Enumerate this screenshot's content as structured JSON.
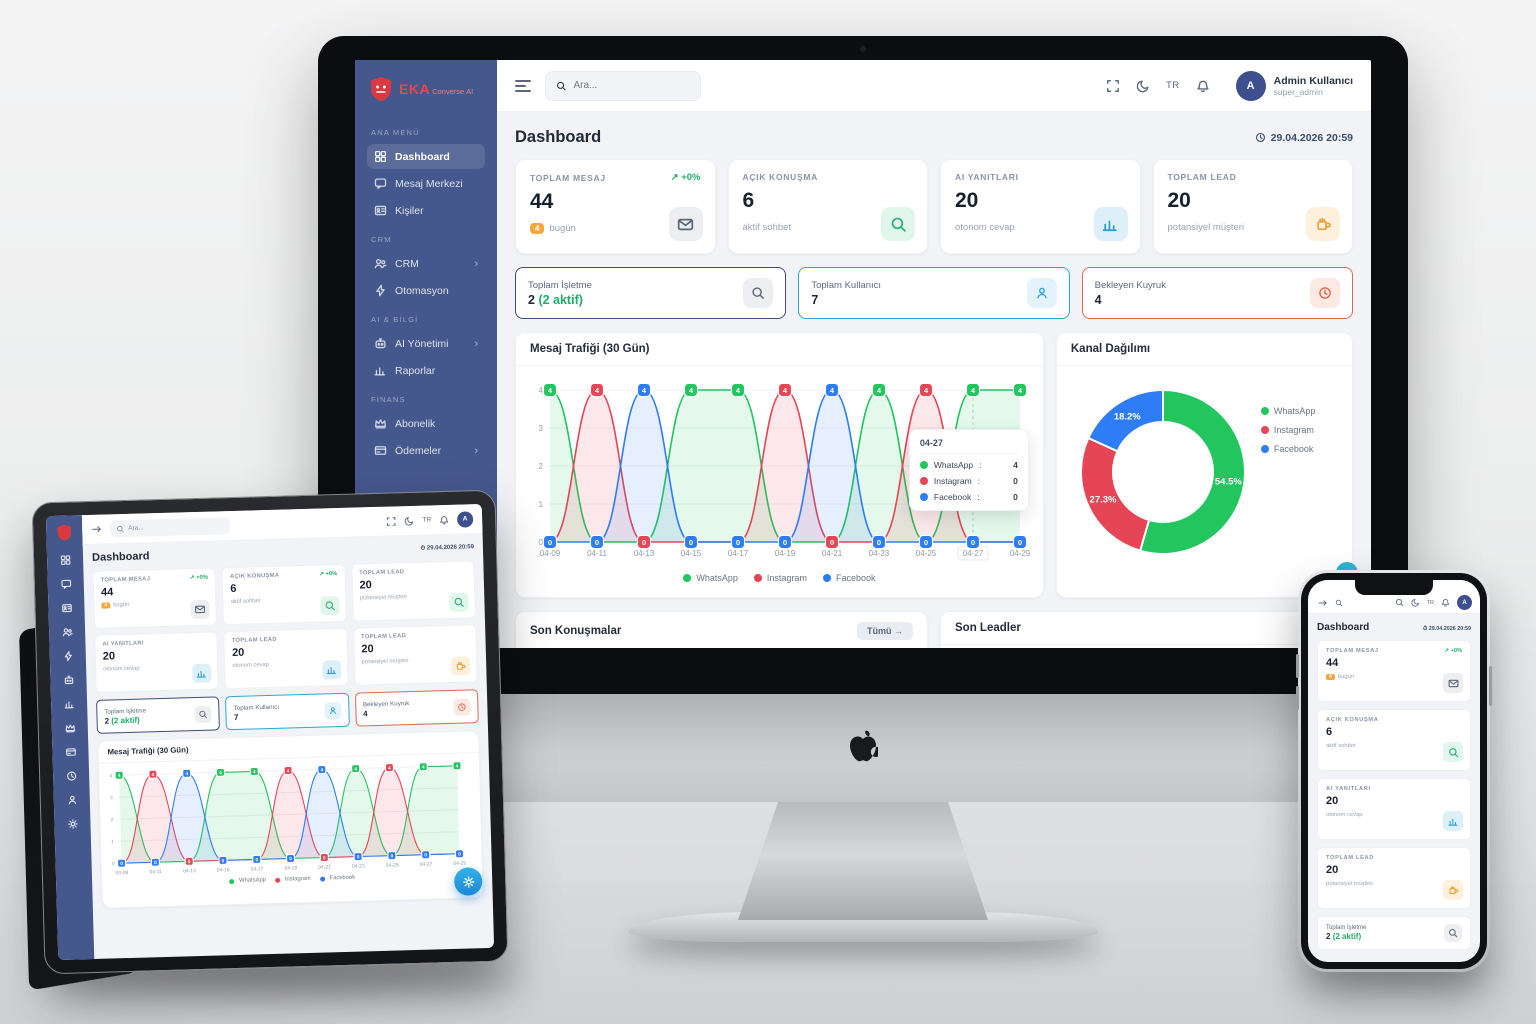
{
  "brand": {
    "name": "EKA",
    "suffix": "Converse",
    "ai": "AI"
  },
  "topbar": {
    "search_placeholder": "Ara...",
    "lang": "TR",
    "user_name": "Admin Kullanıcı",
    "user_role": "super_admin",
    "avatar_initial": "A"
  },
  "page": {
    "title": "Dashboard",
    "datetime": "29.04.2026 20:59"
  },
  "sidebar": {
    "sections": [
      {
        "title": "ANA MENÜ",
        "items": [
          {
            "label": "Dashboard",
            "icon": "dashboard-icon"
          },
          {
            "label": "Mesaj Merkezi",
            "icon": "chat-icon"
          },
          {
            "label": "Kişiler",
            "icon": "contacts-icon"
          }
        ]
      },
      {
        "title": "CRM",
        "items": [
          {
            "label": "CRM",
            "icon": "users-icon",
            "chevron": "›"
          },
          {
            "label": "Otomasyon",
            "icon": "lightning-icon"
          }
        ]
      },
      {
        "title": "AI & BİLGİ",
        "items": [
          {
            "label": "AI Yönetimi",
            "icon": "robot-icon",
            "chevron": "›"
          },
          {
            "label": "Raporlar",
            "icon": "report-icon"
          }
        ]
      },
      {
        "title": "FİNANS",
        "items": [
          {
            "label": "Abonelik",
            "icon": "crown-icon"
          },
          {
            "label": "Ödemeler",
            "icon": "card-icon",
            "chevron": "›"
          }
        ]
      }
    ]
  },
  "stats": [
    {
      "label": "TOPLAM MESAJ",
      "trend": "↗ +0%",
      "value": "44",
      "badge": "4",
      "sub": "bugün",
      "icon": "envelope-icon"
    },
    {
      "label": "AÇIK KONUŞMA",
      "value": "6",
      "sub": "aktif sohbet",
      "icon": "search-icon"
    },
    {
      "label": "AI YANITLARI",
      "value": "20",
      "sub": "otonom cevap",
      "icon": "bar-chart-icon"
    },
    {
      "label": "TOPLAM LEAD",
      "value": "20",
      "sub": "potansiyel müşteri",
      "icon": "lead-icon"
    }
  ],
  "mini_stats": [
    {
      "label": "Toplam İşletme",
      "value": "2",
      "extra": "(2 aktif)",
      "icon": "search-icon"
    },
    {
      "label": "Toplam Kullanıcı",
      "value": "7",
      "icon": "user-icon"
    },
    {
      "label": "Bekleyen Kuyruk",
      "value": "4",
      "icon": "clock-icon"
    }
  ],
  "panels": {
    "conversations_title": "Son Konuşmalar",
    "all_button": "Tümü →",
    "leads_title": "Son Leadler"
  },
  "chart_data": [
    {
      "type": "line",
      "title": "Mesaj Trafiği (30 Gün)",
      "x": [
        "04-09",
        "04-11",
        "04-13",
        "04-15",
        "04-17",
        "04-19",
        "04-21",
        "04-23",
        "04-25",
        "04-27",
        "04-29"
      ],
      "ylim": [
        0,
        4
      ],
      "yticks": [
        0,
        1,
        2,
        3,
        4
      ],
      "grid": true,
      "legend_position": "bottom",
      "series": [
        {
          "name": "WhatsApp",
          "color": "#22c55e",
          "values": [
            4,
            0,
            0,
            4,
            4,
            0,
            0,
            4,
            0,
            4,
            4
          ]
        },
        {
          "name": "Instagram",
          "color": "#e64556",
          "values": [
            0,
            4,
            0,
            0,
            0,
            4,
            0,
            0,
            4,
            0,
            0
          ]
        },
        {
          "name": "Facebook",
          "color": "#2e7df6",
          "values": [
            0,
            0,
            4,
            0,
            0,
            0,
            4,
            0,
            0,
            0,
            0
          ]
        }
      ],
      "tooltip": {
        "x": "04-27",
        "rows": [
          {
            "name": "WhatsApp",
            "value": 4
          },
          {
            "name": "Instagram",
            "value": 0
          },
          {
            "name": "Facebook",
            "value": 0
          }
        ]
      }
    },
    {
      "type": "donut",
      "title": "Kanal Dağılımı",
      "legend_position": "right",
      "slices": [
        {
          "name": "WhatsApp",
          "pct": 54.5,
          "color": "#22c55e",
          "label": "54.5%"
        },
        {
          "name": "Instagram",
          "pct": 27.3,
          "color": "#e64556",
          "label": "27.3%"
        },
        {
          "name": "Facebook",
          "pct": 18.2,
          "color": "#2e7df6",
          "label": "18.2%"
        }
      ]
    }
  ],
  "tablet": {
    "cards": [
      {
        "label": "TOPLAM MESAJ",
        "trend": "↗ +0%",
        "value": "44",
        "badge": "4",
        "sub": "bugün",
        "icon": "envelope-icon"
      },
      {
        "label": "AÇIK KONUŞMA",
        "trend": "↗ +0%",
        "value": "6",
        "sub": "aktif sohbet",
        "icon": "search-icon"
      },
      {
        "label": "TOPLAM LEAD",
        "value": "20",
        "sub": "potansiyel müşteri",
        "icon": "search-icon"
      },
      {
        "label": "AI YANITLARI",
        "value": "20",
        "sub": "otonom cevap",
        "icon": "bar-chart-icon"
      },
      {
        "label": "TOPLAM LEAD",
        "value": "20",
        "sub": "otonom cevap",
        "icon": "bar-chart-icon"
      },
      {
        "label": "TOPLAM LEAD",
        "value": "20",
        "sub": "potansiyel müşteri",
        "icon": "lead-icon"
      }
    ]
  },
  "phone": {
    "cards": [
      {
        "label": "TOPLAM MESAJ",
        "trend": "↗ +0%",
        "value": "44",
        "badge": "4",
        "sub": "bugün",
        "icon": "envelope-icon"
      },
      {
        "label": "AÇIK KONUŞMA",
        "value": "6",
        "sub": "aktif sohbet",
        "icon": "search-icon"
      },
      {
        "label": "AI YANITLARI",
        "value": "20",
        "sub": "otonom cevap",
        "icon": "bar-chart-icon"
      },
      {
        "label": "TOPLAM LEAD",
        "value": "20",
        "sub": "potansiyel müşteri",
        "icon": "lead-icon"
      }
    ],
    "mini": {
      "label": "Toplam İşletme",
      "value": "2",
      "extra": "(2 aktif)",
      "icon": "search-icon"
    }
  },
  "colors": {
    "sidebar": "#45588d",
    "accent_green": "#22c55e",
    "accent_red": "#e64556",
    "accent_blue": "#2e7df6",
    "badge_orange": "#f6a83a",
    "queue_border": "#e0694e",
    "user_border": "#2ba7dc",
    "business_border": "#3d4d77"
  }
}
